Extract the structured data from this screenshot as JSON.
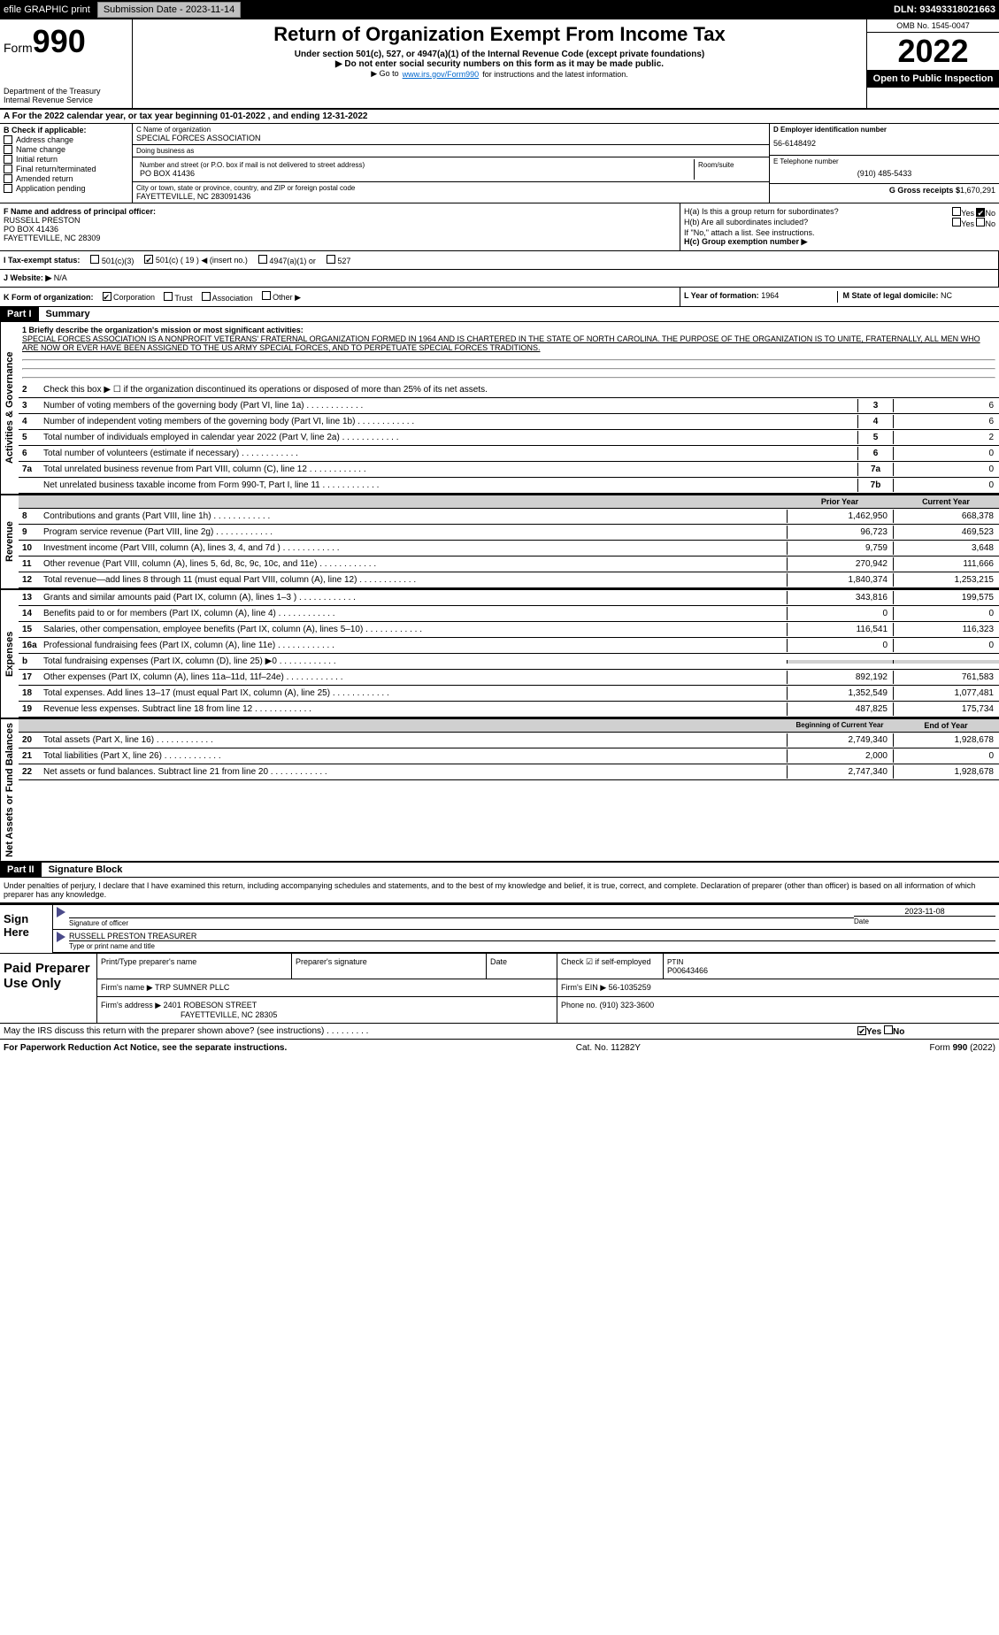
{
  "topbar": {
    "efile": "efile GRAPHIC print",
    "subdate_lbl": "Submission Date - 2023-11-14",
    "dln": "DLN: 93493318021663"
  },
  "header": {
    "form_word": "Form",
    "form_num": "990",
    "title": "Return of Organization Exempt From Income Tax",
    "subtitle": "Under section 501(c), 527, or 4947(a)(1) of the Internal Revenue Code (except private foundations)",
    "nossr": "▶ Do not enter social security numbers on this form as it may be made public.",
    "goto": "▶ Go to ",
    "goto_link": "www.irs.gov/Form990",
    "goto_after": " for instructions and the latest information.",
    "dept": "Department of the Treasury",
    "irs": "Internal Revenue Service",
    "omb": "OMB No. 1545-0047",
    "year": "2022",
    "open": "Open to Public Inspection"
  },
  "row_a": "A For the 2022 calendar year, or tax year beginning 01-01-2022    , and ending 12-31-2022",
  "col_b": {
    "hdr": "B Check if applicable:",
    "items": [
      "Address change",
      "Name change",
      "Initial return",
      "Final return/terminated",
      "Amended return",
      "Application pending"
    ]
  },
  "col_c": {
    "name_lbl": "C Name of organization",
    "name": "SPECIAL FORCES ASSOCIATION",
    "dba_lbl": "Doing business as",
    "dba": "",
    "street_lbl": "Number and street (or P.O. box if mail is not delivered to street address)",
    "room_lbl": "Room/suite",
    "street": "PO BOX 41436",
    "city_lbl": "City or town, state or province, country, and ZIP or foreign postal code",
    "city": "FAYETTEVILLE, NC  283091436"
  },
  "col_d": {
    "ein_lbl": "D Employer identification number",
    "ein": "56-6148492",
    "tel_lbl": "E Telephone number",
    "tel": "(910) 485-5433",
    "gross_lbl": "G Gross receipts $",
    "gross": "1,670,291"
  },
  "row_f": {
    "lbl": "F Name and address of principal officer:",
    "name": "RUSSELL PRESTON",
    "addr1": "PO BOX 41436",
    "addr2": "FAYETTEVILLE, NC  28309"
  },
  "row_h": {
    "ha": "H(a)  Is this a group return for subordinates?",
    "hb": "H(b)  Are all subordinates included?",
    "hb_note": "If \"No,\" attach a list. See instructions.",
    "hc": "H(c)  Group exemption number ▶",
    "yes": "Yes",
    "no": "No"
  },
  "row_i": {
    "lbl": "I  Tax-exempt status:",
    "opts": [
      "501(c)(3)",
      "501(c) ( 19 ) ◀ (insert no.)",
      "4947(a)(1) or",
      "527"
    ]
  },
  "row_j": {
    "lbl": "J Website: ▶",
    "val": "N/A"
  },
  "row_k": {
    "lbl": "K Form of organization:",
    "opts": [
      "Corporation",
      "Trust",
      "Association",
      "Other ▶"
    ]
  },
  "row_l": {
    "lbl": "L Year of formation:",
    "val": "1964"
  },
  "row_m": {
    "lbl": "M State of legal domicile:",
    "val": "NC"
  },
  "part1": {
    "hdr": "Part I",
    "title": "Summary",
    "q1": "1  Briefly describe the organization's mission or most significant activities:",
    "mission": "SPECIAL FORCES ASSOCIATION IS A NONPROFIT VETERANS' FRATERNAL ORGANIZATION FORMED IN 1964 AND IS CHARTERED IN THE STATE OF NORTH CAROLINA. THE PURPOSE OF THE ORGANIZATION IS TO UNITE, FRATERNALLY, ALL MEN WHO ARE NOW OR EVER HAVE BEEN ASSIGNED TO THE US ARMY SPECIAL FORCES, AND TO PERPETUATE SPECIAL FORCES TRADITIONS.",
    "q2": "Check this box ▶ ☐ if the organization discontinued its operations or disposed of more than 25% of its net assets."
  },
  "sidebars": {
    "gov": "Activities & Governance",
    "rev": "Revenue",
    "exp": "Expenses",
    "net": "Net Assets or Fund Balances"
  },
  "gov_lines": [
    {
      "n": "3",
      "t": "Number of voting members of the governing body (Part VI, line 1a)",
      "box": "3",
      "v": "6"
    },
    {
      "n": "4",
      "t": "Number of independent voting members of the governing body (Part VI, line 1b)",
      "box": "4",
      "v": "6"
    },
    {
      "n": "5",
      "t": "Total number of individuals employed in calendar year 2022 (Part V, line 2a)",
      "box": "5",
      "v": "2"
    },
    {
      "n": "6",
      "t": "Total number of volunteers (estimate if necessary)",
      "box": "6",
      "v": "0"
    },
    {
      "n": "7a",
      "t": "Total unrelated business revenue from Part VIII, column (C), line 12",
      "box": "7a",
      "v": "0"
    },
    {
      "n": "",
      "t": "Net unrelated business taxable income from Form 990-T, Part I, line 11",
      "box": "7b",
      "v": "0"
    }
  ],
  "col_hdrs": {
    "prior": "Prior Year",
    "current": "Current Year"
  },
  "rev_lines": [
    {
      "n": "8",
      "t": "Contributions and grants (Part VIII, line 1h)",
      "p": "1,462,950",
      "c": "668,378"
    },
    {
      "n": "9",
      "t": "Program service revenue (Part VIII, line 2g)",
      "p": "96,723",
      "c": "469,523"
    },
    {
      "n": "10",
      "t": "Investment income (Part VIII, column (A), lines 3, 4, and 7d )",
      "p": "9,759",
      "c": "3,648"
    },
    {
      "n": "11",
      "t": "Other revenue (Part VIII, column (A), lines 5, 6d, 8c, 9c, 10c, and 11e)",
      "p": "270,942",
      "c": "111,666"
    },
    {
      "n": "12",
      "t": "Total revenue—add lines 8 through 11 (must equal Part VIII, column (A), line 12)",
      "p": "1,840,374",
      "c": "1,253,215"
    }
  ],
  "exp_lines": [
    {
      "n": "13",
      "t": "Grants and similar amounts paid (Part IX, column (A), lines 1–3 )",
      "p": "343,816",
      "c": "199,575"
    },
    {
      "n": "14",
      "t": "Benefits paid to or for members (Part IX, column (A), line 4)",
      "p": "0",
      "c": "0"
    },
    {
      "n": "15",
      "t": "Salaries, other compensation, employee benefits (Part IX, column (A), lines 5–10)",
      "p": "116,541",
      "c": "116,323"
    },
    {
      "n": "16a",
      "t": "Professional fundraising fees (Part IX, column (A), line 11e)",
      "p": "0",
      "c": "0"
    },
    {
      "n": "b",
      "t": "Total fundraising expenses (Part IX, column (D), line 25) ▶0",
      "p": "",
      "c": "",
      "shade": true
    },
    {
      "n": "17",
      "t": "Other expenses (Part IX, column (A), lines 11a–11d, 11f–24e)",
      "p": "892,192",
      "c": "761,583"
    },
    {
      "n": "18",
      "t": "Total expenses. Add lines 13–17 (must equal Part IX, column (A), line 25)",
      "p": "1,352,549",
      "c": "1,077,481"
    },
    {
      "n": "19",
      "t": "Revenue less expenses. Subtract line 18 from line 12",
      "p": "487,825",
      "c": "175,734"
    }
  ],
  "net_hdrs": {
    "beg": "Beginning of Current Year",
    "end": "End of Year"
  },
  "net_lines": [
    {
      "n": "20",
      "t": "Total assets (Part X, line 16)",
      "p": "2,749,340",
      "c": "1,928,678"
    },
    {
      "n": "21",
      "t": "Total liabilities (Part X, line 26)",
      "p": "2,000",
      "c": "0"
    },
    {
      "n": "22",
      "t": "Net assets or fund balances. Subtract line 21 from line 20",
      "p": "2,747,340",
      "c": "1,928,678"
    }
  ],
  "part2": {
    "hdr": "Part II",
    "title": "Signature Block",
    "decl": "Under penalties of perjury, I declare that I have examined this return, including accompanying schedules and statements, and to the best of my knowledge and belief, it is true, correct, and complete. Declaration of preparer (other than officer) is based on all information of which preparer has any knowledge."
  },
  "sign": {
    "here": "Sign Here",
    "sig_lbl": "Signature of officer",
    "date_lbl": "Date",
    "date": "2023-11-08",
    "name": "RUSSELL PRESTON  TREASURER",
    "name_lbl": "Type or print name and title"
  },
  "prep": {
    "title": "Paid Preparer Use Only",
    "hdrs": [
      "Print/Type preparer's name",
      "Preparer's signature",
      "Date"
    ],
    "check_lbl": "Check ☑ if self-employed",
    "ptin_lbl": "PTIN",
    "ptin": "P00643466",
    "firm_lbl": "Firm's name    ▶",
    "firm": "TRP SUMNER PLLC",
    "ein_lbl": "Firm's EIN ▶",
    "ein": "56-1035259",
    "addr_lbl": "Firm's address ▶",
    "addr1": "2401 ROBESON STREET",
    "addr2": "FAYETTEVILLE, NC  28305",
    "phone_lbl": "Phone no.",
    "phone": "(910) 323-3600"
  },
  "discuss": "May the IRS discuss this return with the preparer shown above? (see instructions)",
  "footer": {
    "l": "For Paperwork Reduction Act Notice, see the separate instructions.",
    "c": "Cat. No. 11282Y",
    "r": "Form 990 (2022)"
  }
}
